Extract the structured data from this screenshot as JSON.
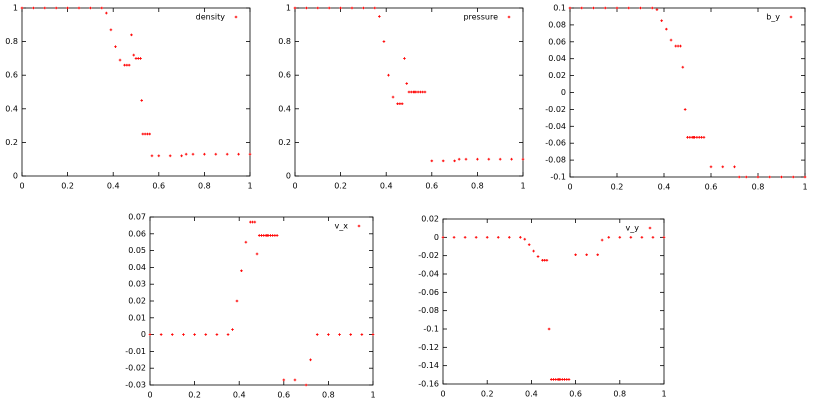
{
  "chart_data": [
    {
      "type": "scatter",
      "legend_label": "density",
      "color": "#ff0000",
      "legend": "upper right",
      "xlim": [
        0,
        1
      ],
      "xticks": [
        0,
        0.2,
        0.4,
        0.6,
        0.8,
        1
      ],
      "ylim": [
        0,
        1
      ],
      "yticks": [
        0,
        0.2,
        0.4,
        0.6,
        0.8,
        1
      ],
      "x": [
        0,
        0.05,
        0.1,
        0.15,
        0.2,
        0.25,
        0.3,
        0.35,
        0.37,
        0.39,
        0.41,
        0.43,
        0.45,
        0.46,
        0.47,
        0.48,
        0.49,
        0.5,
        0.51,
        0.52,
        0.525,
        0.53,
        0.54,
        0.55,
        0.56,
        0.57,
        0.6,
        0.65,
        0.7,
        0.72,
        0.75,
        0.8,
        0.85,
        0.9,
        0.95,
        1
      ],
      "values": [
        1,
        1,
        1,
        1,
        1,
        1,
        1,
        1,
        0.97,
        0.87,
        0.77,
        0.69,
        0.66,
        0.66,
        0.66,
        0.84,
        0.72,
        0.7,
        0.7,
        0.7,
        0.45,
        0.25,
        0.25,
        0.25,
        0.25,
        0.12,
        0.12,
        0.12,
        0.12,
        0.13,
        0.13,
        0.13,
        0.13,
        0.13,
        0.13,
        0.13
      ]
    },
    {
      "type": "scatter",
      "legend_label": "pressure",
      "color": "#ff0000",
      "legend": "upper right",
      "xlim": [
        0,
        1
      ],
      "xticks": [
        0,
        0.2,
        0.4,
        0.6,
        0.8,
        1
      ],
      "ylim": [
        0,
        1
      ],
      "yticks": [
        0,
        0.2,
        0.4,
        0.6,
        0.8,
        1
      ],
      "x": [
        0,
        0.05,
        0.1,
        0.15,
        0.2,
        0.25,
        0.3,
        0.35,
        0.37,
        0.39,
        0.41,
        0.43,
        0.45,
        0.46,
        0.47,
        0.48,
        0.49,
        0.5,
        0.51,
        0.52,
        0.525,
        0.53,
        0.54,
        0.55,
        0.56,
        0.57,
        0.6,
        0.65,
        0.7,
        0.72,
        0.75,
        0.8,
        0.85,
        0.9,
        0.95,
        1
      ],
      "values": [
        1,
        1,
        1,
        1,
        1,
        1,
        1,
        1,
        0.95,
        0.8,
        0.6,
        0.47,
        0.43,
        0.43,
        0.43,
        0.7,
        0.55,
        0.5,
        0.5,
        0.5,
        0.5,
        0.5,
        0.5,
        0.5,
        0.5,
        0.5,
        0.09,
        0.09,
        0.09,
        0.1,
        0.1,
        0.1,
        0.1,
        0.1,
        0.1,
        0.1
      ]
    },
    {
      "type": "scatter",
      "legend_label": "b_y",
      "color": "#ff0000",
      "legend": "upper right",
      "xlim": [
        0,
        1
      ],
      "xticks": [
        0,
        0.2,
        0.4,
        0.6,
        0.8,
        1
      ],
      "ylim": [
        -0.1,
        0.1
      ],
      "yticks": [
        -0.1,
        -0.08,
        -0.06,
        -0.04,
        -0.02,
        0,
        0.02,
        0.04,
        0.06,
        0.08,
        0.1
      ],
      "x": [
        0,
        0.05,
        0.1,
        0.15,
        0.2,
        0.25,
        0.3,
        0.35,
        0.37,
        0.39,
        0.41,
        0.43,
        0.45,
        0.46,
        0.47,
        0.48,
        0.49,
        0.5,
        0.51,
        0.52,
        0.525,
        0.53,
        0.54,
        0.55,
        0.56,
        0.57,
        0.6,
        0.65,
        0.7,
        0.72,
        0.75,
        0.8,
        0.85,
        0.9,
        0.95,
        1
      ],
      "values": [
        0.1,
        0.1,
        0.1,
        0.1,
        0.1,
        0.1,
        0.1,
        0.1,
        0.098,
        0.085,
        0.075,
        0.062,
        0.055,
        0.055,
        0.055,
        0.03,
        -0.02,
        -0.053,
        -0.053,
        -0.053,
        -0.053,
        -0.053,
        -0.053,
        -0.053,
        -0.053,
        -0.053,
        -0.088,
        -0.088,
        -0.088,
        -0.1,
        -0.1,
        -0.1,
        -0.1,
        -0.1,
        -0.1,
        -0.1
      ]
    },
    {
      "type": "scatter",
      "legend_label": "v_x",
      "color": "#ff0000",
      "legend": "upper right",
      "xlim": [
        0,
        1
      ],
      "xticks": [
        0,
        0.2,
        0.4,
        0.6,
        0.8,
        1
      ],
      "ylim": [
        -0.03,
        0.07
      ],
      "yticks": [
        -0.03,
        -0.02,
        -0.01,
        0,
        0.01,
        0.02,
        0.03,
        0.04,
        0.05,
        0.06,
        0.07
      ],
      "x": [
        0,
        0.05,
        0.1,
        0.15,
        0.2,
        0.25,
        0.3,
        0.35,
        0.37,
        0.39,
        0.41,
        0.43,
        0.45,
        0.46,
        0.47,
        0.48,
        0.49,
        0.5,
        0.51,
        0.52,
        0.525,
        0.53,
        0.54,
        0.55,
        0.56,
        0.57,
        0.6,
        0.65,
        0.7,
        0.72,
        0.75,
        0.8,
        0.85,
        0.9,
        0.95,
        1
      ],
      "values": [
        0,
        0,
        0,
        0,
        0,
        0,
        0,
        0,
        0.003,
        0.02,
        0.038,
        0.055,
        0.067,
        0.067,
        0.067,
        0.048,
        0.059,
        0.059,
        0.059,
        0.059,
        0.059,
        0.059,
        0.059,
        0.059,
        0.059,
        0.059,
        -0.027,
        -0.027,
        -0.03,
        -0.015,
        0,
        0,
        0,
        0,
        0,
        0
      ]
    },
    {
      "type": "scatter",
      "legend_label": "v_y",
      "color": "#ff0000",
      "legend": "upper right",
      "xlim": [
        0,
        1
      ],
      "xticks": [
        0,
        0.2,
        0.4,
        0.6,
        0.8,
        1
      ],
      "ylim": [
        -0.16,
        0.02
      ],
      "yticks": [
        -0.16,
        -0.14,
        -0.12,
        -0.1,
        -0.08,
        -0.06,
        -0.04,
        -0.02,
        0,
        0.02
      ],
      "x": [
        0,
        0.05,
        0.1,
        0.15,
        0.2,
        0.25,
        0.3,
        0.35,
        0.37,
        0.39,
        0.41,
        0.43,
        0.45,
        0.46,
        0.47,
        0.48,
        0.49,
        0.5,
        0.51,
        0.52,
        0.525,
        0.53,
        0.54,
        0.55,
        0.56,
        0.57,
        0.6,
        0.65,
        0.7,
        0.72,
        0.75,
        0.8,
        0.85,
        0.9,
        0.95,
        1
      ],
      "values": [
        0,
        0,
        0,
        0,
        0,
        0,
        0,
        0,
        -0.002,
        -0.008,
        -0.015,
        -0.021,
        -0.025,
        -0.025,
        -0.025,
        -0.1,
        -0.155,
        -0.155,
        -0.155,
        -0.155,
        -0.155,
        -0.155,
        -0.155,
        -0.155,
        -0.155,
        -0.155,
        -0.019,
        -0.019,
        -0.019,
        -0.003,
        0,
        0,
        0,
        0,
        0,
        0
      ]
    }
  ]
}
